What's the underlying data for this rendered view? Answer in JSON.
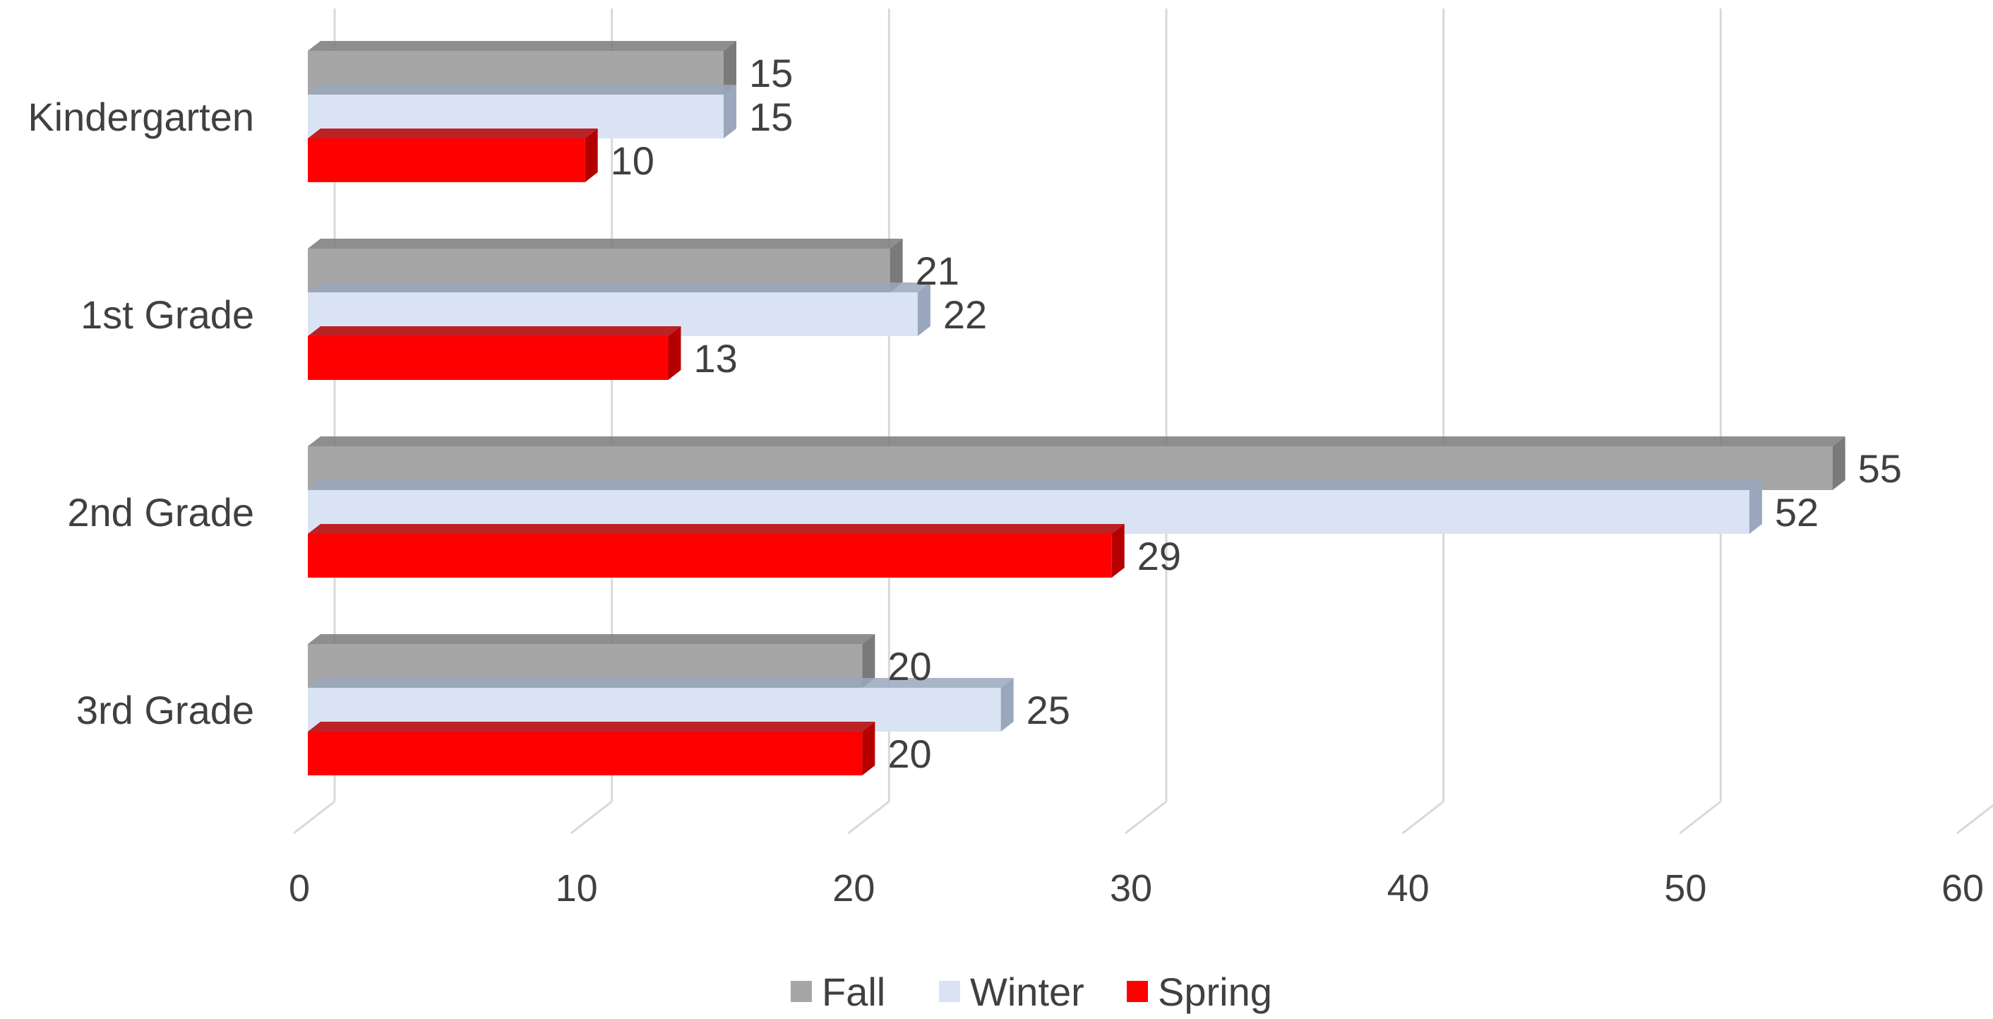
{
  "chart_data": {
    "type": "bar",
    "orientation": "horizontal",
    "style": "3d-clustered",
    "categories": [
      "Kindergarten",
      "1st Grade",
      "2nd Grade",
      "3rd Grade"
    ],
    "series": [
      {
        "name": "Fall",
        "values": [
          15,
          21,
          55,
          20
        ],
        "color": "#a6a6a6",
        "dark": "#7a7a7a"
      },
      {
        "name": "Winter",
        "values": [
          15,
          22,
          52,
          25
        ],
        "color": "#dae3f3",
        "dark": "#9aa7bd"
      },
      {
        "name": "Spring",
        "values": [
          10,
          13,
          29,
          20
        ],
        "color": "#ff0000",
        "dark": "#b50000"
      }
    ],
    "xlim": [
      0,
      60
    ],
    "xticks": [
      0,
      10,
      20,
      30,
      40,
      50,
      60
    ],
    "grid": true,
    "data_labels": true,
    "legend_position": "bottom"
  }
}
